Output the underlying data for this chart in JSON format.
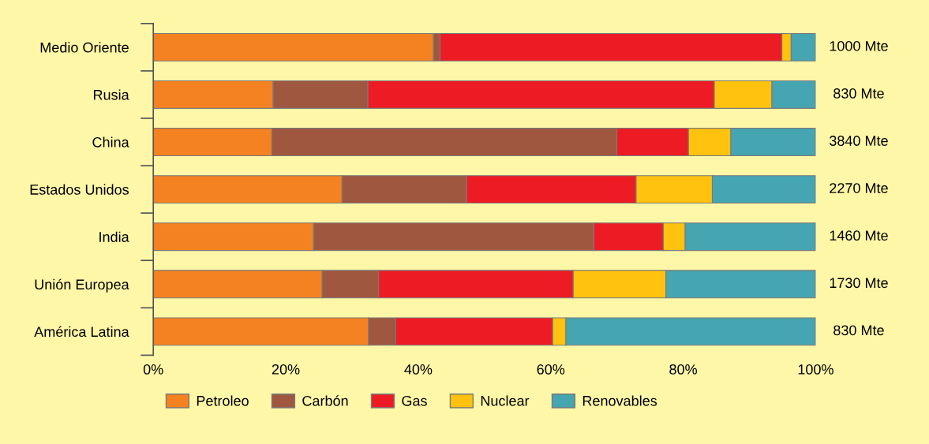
{
  "chart_data": {
    "type": "bar",
    "orientation": "horizontal",
    "stacked": true,
    "categories": [
      "Medio Oriente",
      "Rusia",
      "China",
      "Estados Unidos",
      "India",
      "Unión Europea",
      "América Latina"
    ],
    "series": [
      {
        "name": "Petroleo",
        "color": "#f58220",
        "values": [
          42.3,
          18.1,
          17.9,
          28.5,
          24.2,
          25.5,
          32.5
        ]
      },
      {
        "name": "Carbón",
        "color": "#a0573f",
        "values": [
          1.0,
          14.3,
          52.1,
          18.8,
          42.3,
          8.5,
          4.1
        ]
      },
      {
        "name": "Gas",
        "color": "#ed1c24",
        "values": [
          51.6,
          52.3,
          10.8,
          25.6,
          10.5,
          29.4,
          23.7
        ]
      },
      {
        "name": "Nuclear",
        "color": "#ffc20e",
        "values": [
          1.4,
          8.7,
          6.4,
          11.5,
          3.3,
          14.0,
          2.0
        ]
      },
      {
        "name": "Renovables",
        "color": "#45a5b0",
        "values": [
          3.7,
          6.6,
          12.8,
          15.6,
          19.7,
          22.6,
          37.7
        ]
      }
    ],
    "annotations": [
      "1000 Mte",
      "830 Mte",
      "3840 Mte",
      "2270 Mte",
      "1460 Mte",
      "1730 Mte",
      "830 Mte"
    ],
    "xlim": [
      0,
      100
    ],
    "xticks": [
      {
        "value": 0,
        "label": "0%"
      },
      {
        "value": 20,
        "label": "20%"
      },
      {
        "value": 40,
        "label": "40%"
      },
      {
        "value": 60,
        "label": "60%"
      },
      {
        "value": 80,
        "label": "80%"
      },
      {
        "value": 100,
        "label": "100%"
      }
    ],
    "grid": false,
    "legend": "bottom"
  }
}
